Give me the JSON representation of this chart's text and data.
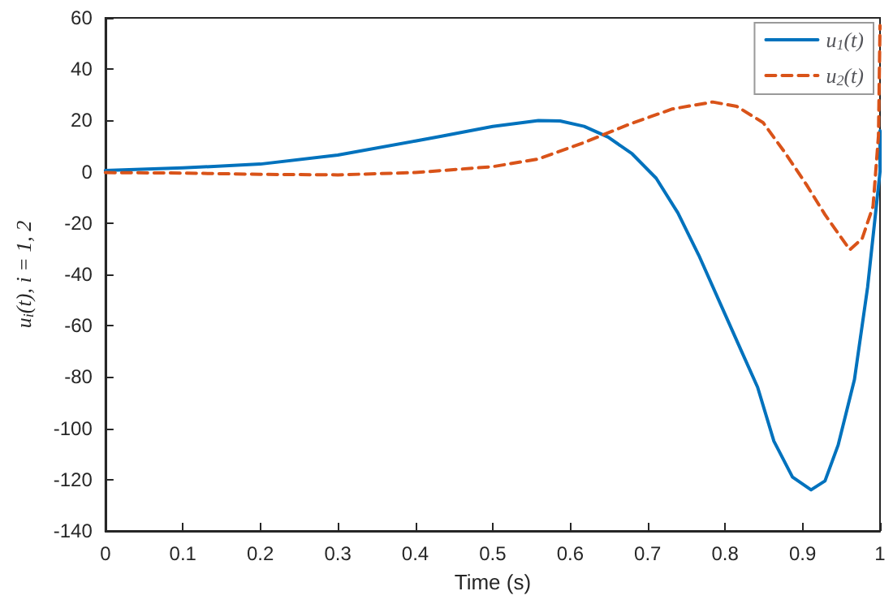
{
  "chart_data": {
    "type": "line",
    "xlabel": "Time (s)",
    "ylabel": "u$_{i}$(t), i = 1, 2",
    "xlim": [
      0,
      1
    ],
    "ylim": [
      -140,
      60
    ],
    "xticks": [
      0,
      0.1,
      0.2,
      0.3,
      0.4,
      0.5,
      0.6,
      0.7,
      0.8,
      0.9,
      1
    ],
    "yticks": [
      -140,
      -120,
      -100,
      -80,
      -60,
      -40,
      -20,
      0,
      20,
      40,
      60
    ],
    "grid": false,
    "legend": "top right",
    "series": [
      {
        "name": "u$_{1}$(t)",
        "color": "#0072bd",
        "line_style": "solid",
        "x": [
          0,
          0.1,
          0.2,
          0.3,
          0.4,
          0.434,
          0.5,
          0.559,
          0.587,
          0.618,
          0.649,
          0.68,
          0.711,
          0.739,
          0.766,
          0.794,
          0.822,
          0.842,
          0.863,
          0.887,
          0.911,
          0.929,
          0.946,
          0.967,
          0.984,
          1.0,
          1.0
        ],
        "values": [
          0.5,
          1.5,
          3,
          6.5,
          12,
          13.9,
          17.7,
          20,
          19.8,
          17.7,
          13.5,
          7,
          -2.5,
          -16,
          -32.5,
          -51.5,
          -70.5,
          -84,
          -105,
          -119,
          -124,
          -120.5,
          -106.5,
          -81,
          -45,
          0,
          16
        ]
      },
      {
        "name": "u$_{2}$(t)",
        "color": "#d95319",
        "line_style": "dashed",
        "x": [
          0,
          0.1,
          0.2,
          0.3,
          0.4,
          0.5,
          0.559,
          0.618,
          0.677,
          0.732,
          0.784,
          0.815,
          0.849,
          0.877,
          0.905,
          0.929,
          0.946,
          0.961,
          0.977,
          0.991,
          0.998,
          1.0
        ],
        "values": [
          -0.3,
          -0.5,
          -1,
          -1.2,
          -0.3,
          2,
          5,
          11.4,
          18.6,
          24.5,
          27.2,
          25.5,
          19.2,
          7.6,
          -5,
          -16.7,
          -24,
          -30.4,
          -26,
          -13.5,
          14,
          57
        ]
      }
    ]
  }
}
